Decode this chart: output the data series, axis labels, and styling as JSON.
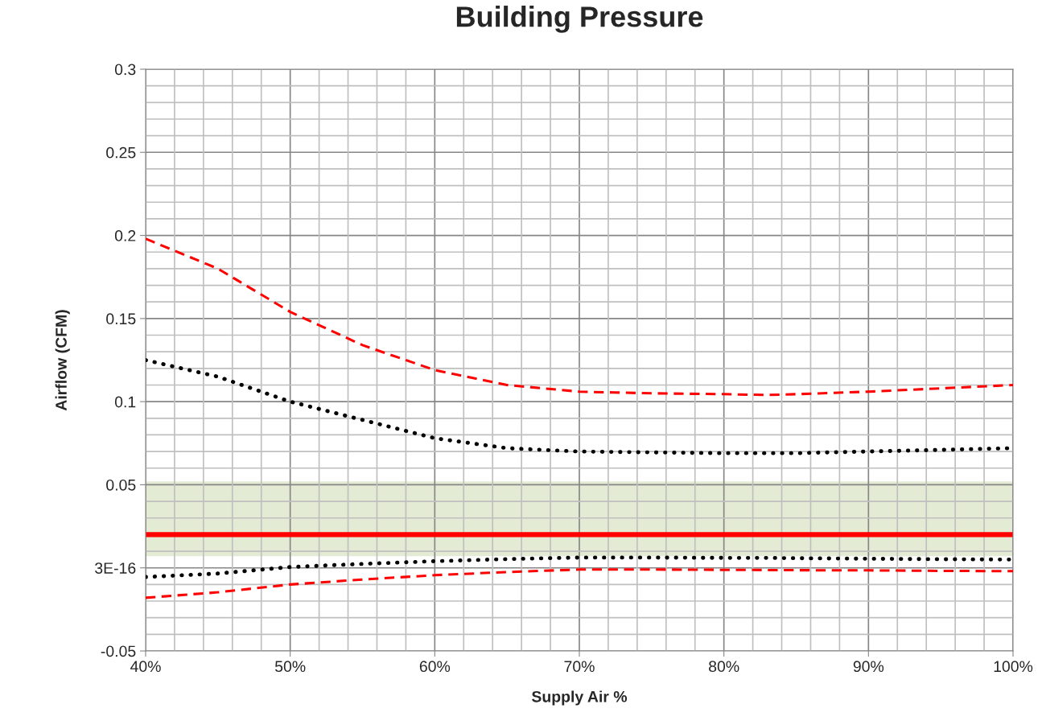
{
  "chart_data": {
    "type": "line",
    "title": "Building Pressure",
    "xlabel": "Supply Air %",
    "ylabel": "Airflow (CFM)",
    "x": [
      40,
      45,
      50,
      55,
      60,
      65,
      70,
      75,
      80,
      83,
      85,
      90,
      95,
      100
    ],
    "series": [
      {
        "color": "#ff0000",
        "line_style": "dashed",
        "values": [
          0.198,
          0.18,
          0.154,
          0.134,
          0.119,
          0.11,
          0.106,
          0.105,
          0.1045,
          0.104,
          0.1045,
          0.106,
          0.108,
          0.11
        ]
      },
      {
        "color": "#000000",
        "line_style": "dotted",
        "values": [
          0.125,
          0.115,
          0.1,
          0.089,
          0.078,
          0.072,
          0.07,
          0.0695,
          0.069,
          0.069,
          0.069,
          0.07,
          0.071,
          0.072
        ]
      },
      {
        "color": "#000000",
        "line_style": "dotted",
        "values": [
          -0.0055,
          -0.0034,
          0.0005,
          0.0024,
          0.004,
          0.0053,
          0.0062,
          0.0062,
          0.006,
          0.006,
          0.0058,
          0.0055,
          0.0052,
          0.005
        ]
      },
      {
        "color": "#ff0000",
        "line_style": "dashed",
        "values": [
          -0.018,
          -0.0147,
          -0.01,
          -0.007,
          -0.0044,
          -0.0025,
          -0.001,
          -0.001,
          -0.0012,
          -0.0013,
          -0.0014,
          -0.0015,
          -0.0018,
          -0.002
        ]
      }
    ],
    "ref_lines": [
      {
        "axis": "y",
        "value": 0.02,
        "color": "#ff0000",
        "line_style": "solid"
      }
    ],
    "bands": [
      {
        "axis": "y",
        "from": 0.007,
        "to": 0.052,
        "color": "#e4ebd4"
      }
    ],
    "xlim": [
      40,
      100
    ],
    "ylim": [
      -0.05,
      0.3
    ],
    "xticks": [
      {
        "value": 40,
        "label": "40%"
      },
      {
        "value": 50,
        "label": "50%"
      },
      {
        "value": 60,
        "label": "60%"
      },
      {
        "value": 70,
        "label": "70%"
      },
      {
        "value": 80,
        "label": "80%"
      },
      {
        "value": 90,
        "label": "90%"
      },
      {
        "value": 100,
        "label": "100%"
      }
    ],
    "yticks": [
      -0.05,
      {
        "value": 0,
        "label": "3E-16"
      },
      0.05,
      0.1,
      0.15,
      0.2,
      0.25,
      0.3
    ],
    "grid": true,
    "legend": false
  }
}
